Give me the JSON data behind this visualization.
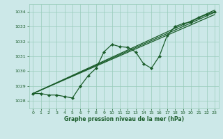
{
  "background_color": "#cce8e8",
  "grid_color": "#99ccbb",
  "line_color": "#1a5c2a",
  "marker_color": "#1a5c2a",
  "text_color": "#1a5c2a",
  "xlabel": "Graphe pression niveau de la mer (hPa)",
  "ylim": [
    1027.5,
    1034.5
  ],
  "xlim": [
    -0.5,
    23.5
  ],
  "yticks": [
    1028,
    1029,
    1030,
    1031,
    1032,
    1033,
    1034
  ],
  "xticks": [
    0,
    1,
    2,
    3,
    4,
    5,
    6,
    7,
    8,
    9,
    10,
    11,
    12,
    13,
    14,
    15,
    16,
    17,
    18,
    19,
    20,
    21,
    22,
    23
  ],
  "series_main_x": [
    0,
    1,
    2,
    3,
    4,
    5,
    6,
    7,
    8,
    9,
    10,
    11,
    12,
    13,
    14,
    15,
    16,
    17,
    18,
    19,
    20,
    21,
    22,
    23
  ],
  "series_main_y": [
    1028.5,
    1028.5,
    1028.4,
    1028.4,
    1028.3,
    1028.2,
    1029.0,
    1029.7,
    1030.2,
    1031.3,
    1031.8,
    1031.65,
    1031.6,
    1031.3,
    1030.5,
    1030.2,
    1031.0,
    1032.4,
    1033.0,
    1033.2,
    1033.3,
    1033.6,
    1033.8,
    1034.0
  ],
  "series_trend1_x": [
    0,
    23
  ],
  "series_trend1_y": [
    1028.5,
    1033.8
  ],
  "series_trend2_x": [
    0,
    23
  ],
  "series_trend2_y": [
    1028.5,
    1033.95
  ],
  "series_trend3_x": [
    0,
    23
  ],
  "series_trend3_y": [
    1028.5,
    1034.1
  ]
}
